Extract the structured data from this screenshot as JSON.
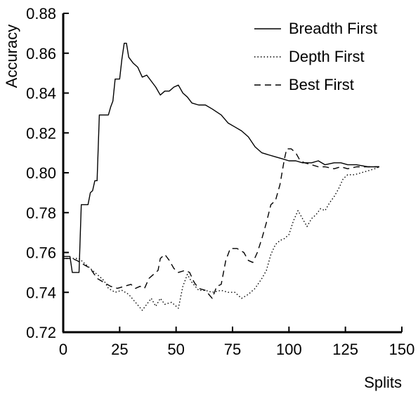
{
  "chart_data": {
    "type": "line",
    "title": "",
    "xlabel": "Splits",
    "ylabel": "Accuracy",
    "xlim": [
      0,
      150
    ],
    "ylim": [
      0.72,
      0.88
    ],
    "xticks": [
      0,
      25,
      50,
      75,
      100,
      125,
      150
    ],
    "yticks": [
      "0.72",
      "0.74",
      "0.76",
      "0.78",
      "0.80",
      "0.82",
      "0.84",
      "0.86",
      "0.88"
    ],
    "grid": false,
    "legend_position": "top-right",
    "series": [
      {
        "name": "Breadth First",
        "style": "solid",
        "color": "#000000",
        "points": [
          [
            0,
            0.758
          ],
          [
            3,
            0.758
          ],
          [
            4,
            0.75
          ],
          [
            7,
            0.75
          ],
          [
            8,
            0.784
          ],
          [
            11,
            0.784
          ],
          [
            12,
            0.79
          ],
          [
            13,
            0.791
          ],
          [
            14,
            0.796
          ],
          [
            15,
            0.796
          ],
          [
            16,
            0.829
          ],
          [
            20,
            0.829
          ],
          [
            21,
            0.833
          ],
          [
            22,
            0.836
          ],
          [
            23,
            0.847
          ],
          [
            25,
            0.847
          ],
          [
            26,
            0.857
          ],
          [
            27,
            0.865
          ],
          [
            28,
            0.865
          ],
          [
            29,
            0.858
          ],
          [
            31,
            0.855
          ],
          [
            33,
            0.853
          ],
          [
            35,
            0.848
          ],
          [
            37,
            0.849
          ],
          [
            39,
            0.846
          ],
          [
            41,
            0.843
          ],
          [
            43,
            0.839
          ],
          [
            45,
            0.841
          ],
          [
            47,
            0.841
          ],
          [
            49,
            0.843
          ],
          [
            51,
            0.844
          ],
          [
            53,
            0.84
          ],
          [
            55,
            0.838
          ],
          [
            57,
            0.835
          ],
          [
            60,
            0.834
          ],
          [
            63,
            0.834
          ],
          [
            66,
            0.832
          ],
          [
            70,
            0.829
          ],
          [
            73,
            0.825
          ],
          [
            76,
            0.823
          ],
          [
            79,
            0.821
          ],
          [
            82,
            0.818
          ],
          [
            85,
            0.813
          ],
          [
            88,
            0.81
          ],
          [
            91,
            0.809
          ],
          [
            94,
            0.808
          ],
          [
            97,
            0.807
          ],
          [
            100,
            0.806
          ],
          [
            103,
            0.806
          ],
          [
            106,
            0.805
          ],
          [
            110,
            0.805
          ],
          [
            113,
            0.806
          ],
          [
            116,
            0.804
          ],
          [
            120,
            0.805
          ],
          [
            123,
            0.805
          ],
          [
            126,
            0.804
          ],
          [
            130,
            0.804
          ],
          [
            135,
            0.803
          ],
          [
            138,
            0.803
          ],
          [
            140,
            0.803
          ]
        ]
      },
      {
        "name": "Depth First",
        "style": "dotted",
        "color": "#000000",
        "points": [
          [
            0,
            0.757
          ],
          [
            4,
            0.757
          ],
          [
            7,
            0.757
          ],
          [
            9,
            0.755
          ],
          [
            12,
            0.752
          ],
          [
            15,
            0.749
          ],
          [
            18,
            0.746
          ],
          [
            20,
            0.742
          ],
          [
            23,
            0.74
          ],
          [
            26,
            0.741
          ],
          [
            29,
            0.739
          ],
          [
            32,
            0.735
          ],
          [
            35,
            0.731
          ],
          [
            37,
            0.734
          ],
          [
            39,
            0.737
          ],
          [
            41,
            0.733
          ],
          [
            43,
            0.737
          ],
          [
            45,
            0.734
          ],
          [
            48,
            0.735
          ],
          [
            51,
            0.732
          ],
          [
            53,
            0.743
          ],
          [
            55,
            0.749
          ],
          [
            57,
            0.745
          ],
          [
            60,
            0.741
          ],
          [
            63,
            0.741
          ],
          [
            66,
            0.74
          ],
          [
            70,
            0.741
          ],
          [
            73,
            0.74
          ],
          [
            76,
            0.74
          ],
          [
            79,
            0.737
          ],
          [
            82,
            0.739
          ],
          [
            85,
            0.742
          ],
          [
            88,
            0.747
          ],
          [
            90,
            0.751
          ],
          [
            92,
            0.759
          ],
          [
            94,
            0.764
          ],
          [
            96,
            0.766
          ],
          [
            98,
            0.767
          ],
          [
            100,
            0.769
          ],
          [
            102,
            0.776
          ],
          [
            104,
            0.781
          ],
          [
            106,
            0.777
          ],
          [
            108,
            0.773
          ],
          [
            110,
            0.777
          ],
          [
            112,
            0.779
          ],
          [
            114,
            0.782
          ],
          [
            116,
            0.781
          ],
          [
            118,
            0.785
          ],
          [
            120,
            0.788
          ],
          [
            122,
            0.792
          ],
          [
            124,
            0.797
          ],
          [
            126,
            0.799
          ],
          [
            129,
            0.799
          ],
          [
            132,
            0.8
          ],
          [
            135,
            0.801
          ],
          [
            138,
            0.802
          ],
          [
            140,
            0.803
          ]
        ]
      },
      {
        "name": "Best First",
        "style": "dashed",
        "color": "#000000",
        "points": [
          [
            0,
            0.757
          ],
          [
            4,
            0.757
          ],
          [
            6,
            0.756
          ],
          [
            9,
            0.754
          ],
          [
            12,
            0.752
          ],
          [
            15,
            0.747
          ],
          [
            18,
            0.745
          ],
          [
            21,
            0.743
          ],
          [
            24,
            0.742
          ],
          [
            27,
            0.743
          ],
          [
            30,
            0.744
          ],
          [
            32,
            0.742
          ],
          [
            34,
            0.743
          ],
          [
            36,
            0.742
          ],
          [
            38,
            0.747
          ],
          [
            40,
            0.749
          ],
          [
            42,
            0.751
          ],
          [
            43,
            0.757
          ],
          [
            45,
            0.759
          ],
          [
            47,
            0.756
          ],
          [
            49,
            0.752
          ],
          [
            51,
            0.75
          ],
          [
            54,
            0.751
          ],
          [
            56,
            0.75
          ],
          [
            58,
            0.745
          ],
          [
            60,
            0.742
          ],
          [
            63,
            0.741
          ],
          [
            66,
            0.737
          ],
          [
            68,
            0.743
          ],
          [
            70,
            0.744
          ],
          [
            72,
            0.756
          ],
          [
            74,
            0.762
          ],
          [
            77,
            0.762
          ],
          [
            80,
            0.76
          ],
          [
            82,
            0.756
          ],
          [
            84,
            0.755
          ],
          [
            86,
            0.76
          ],
          [
            88,
            0.767
          ],
          [
            90,
            0.775
          ],
          [
            92,
            0.784
          ],
          [
            94,
            0.786
          ],
          [
            96,
            0.794
          ],
          [
            98,
            0.807
          ],
          [
            99,
            0.812
          ],
          [
            101,
            0.812
          ],
          [
            103,
            0.81
          ],
          [
            105,
            0.806
          ],
          [
            107,
            0.805
          ],
          [
            110,
            0.804
          ],
          [
            113,
            0.803
          ],
          [
            116,
            0.803
          ],
          [
            120,
            0.802
          ],
          [
            123,
            0.803
          ],
          [
            126,
            0.802
          ],
          [
            130,
            0.803
          ],
          [
            135,
            0.803
          ],
          [
            140,
            0.803
          ]
        ]
      }
    ]
  }
}
